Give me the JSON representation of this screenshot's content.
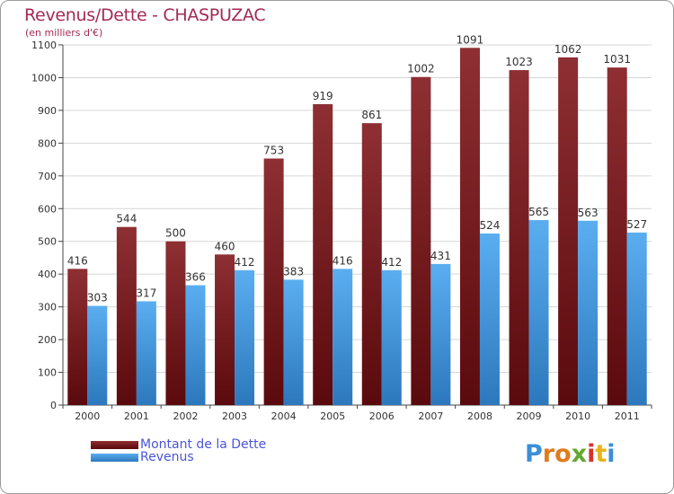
{
  "header": {
    "title": "Revenus/Dette - CHASPUZAC",
    "subtitle": "(en milliers d'€)"
  },
  "colors": {
    "dette": "#7d1a1f",
    "revenus": "#3d95dc",
    "grid": "#d6d6d6",
    "text": "#333333"
  },
  "chart_data": {
    "type": "bar",
    "title": "Revenus/Dette - CHASPUZAC",
    "ylabel": "",
    "xlabel": "",
    "ylim": [
      0,
      1100
    ],
    "yticks": [
      0,
      100,
      200,
      300,
      400,
      500,
      600,
      700,
      800,
      900,
      1000,
      1100
    ],
    "grid": true,
    "legend_position": "bottom-left",
    "categories": [
      "2000",
      "2001",
      "2002",
      "2003",
      "2004",
      "2005",
      "2006",
      "2007",
      "2008",
      "2009",
      "2010",
      "2011"
    ],
    "series": [
      {
        "name": "Montant de la Dette",
        "values": [
          416,
          544,
          500,
          460,
          753,
          919,
          861,
          1002,
          1091,
          1023,
          1062,
          1031
        ]
      },
      {
        "name": "Revenus",
        "values": [
          303,
          317,
          366,
          412,
          383,
          416,
          412,
          431,
          524,
          565,
          563,
          527
        ]
      }
    ]
  },
  "legend": {
    "items": [
      {
        "label": "Montant de la Dette"
      },
      {
        "label": "Revenus"
      }
    ]
  },
  "logo": {
    "letters": [
      "P",
      "r",
      "o",
      "x",
      "i",
      "t",
      "i"
    ],
    "letter_colors": [
      "#3a8fd6",
      "#e07b1c",
      "#e07b1c",
      "#63a830",
      "#d8322b",
      "#e8b41c",
      "#3a8fd6"
    ]
  }
}
